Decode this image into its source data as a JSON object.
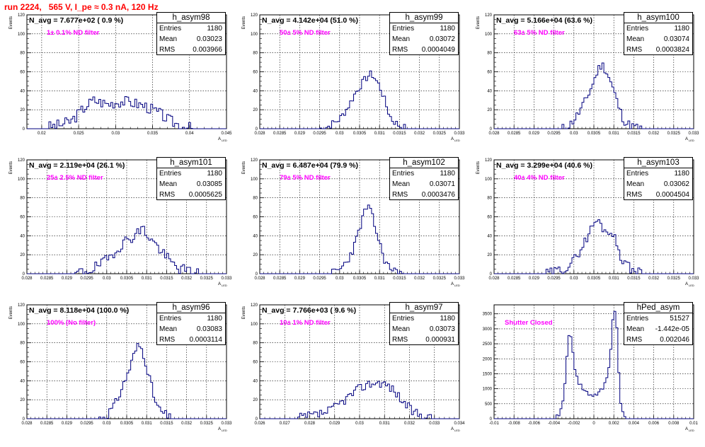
{
  "title": "run 2224,   565 V, I_pe ≈ 0.3 nA, 120 Hz",
  "chart_data": [
    {
      "type": "histogram",
      "hist_name": "h_asym98",
      "n_avg_label": "N_avg = 7.677e+02 ( 0.9 %)",
      "filter_label": "1± 0.1% ND filter",
      "entries": "1180",
      "mean": "0.03023",
      "rms": "0.003966",
      "xlabel": "A",
      "xlabel_sub": "LED",
      "ylabel": "Events",
      "xlim": [
        0.018,
        0.045
      ],
      "ylim": [
        0,
        120
      ],
      "xticks": [
        0.02,
        0.025,
        0.03,
        0.035,
        0.04,
        0.045
      ],
      "xtick_labels": [
        "0.02",
        "0.025",
        "0.03",
        "0.035",
        "0.04",
        "0.045"
      ],
      "yticks": [
        0,
        20,
        40,
        60,
        80,
        100,
        120
      ],
      "profile": [
        [
          0.0208,
          0
        ],
        [
          0.021,
          2
        ],
        [
          0.0225,
          4
        ],
        [
          0.024,
          8
        ],
        [
          0.025,
          16
        ],
        [
          0.026,
          24
        ],
        [
          0.027,
          30
        ],
        [
          0.028,
          28
        ],
        [
          0.029,
          26
        ],
        [
          0.03,
          28
        ],
        [
          0.031,
          29
        ],
        [
          0.032,
          28
        ],
        [
          0.033,
          26
        ],
        [
          0.034,
          24
        ],
        [
          0.035,
          20
        ],
        [
          0.036,
          16
        ],
        [
          0.037,
          10
        ],
        [
          0.038,
          6
        ],
        [
          0.039,
          3
        ],
        [
          0.0405,
          0
        ]
      ],
      "noise": 6,
      "seed": 3
    },
    {
      "type": "histogram",
      "hist_name": "h_asym99",
      "n_avg_label": "N_avg = 4.142e+04 (51.0 %)",
      "filter_label": "50± 5% ND filter",
      "entries": "1180",
      "mean": "0.03072",
      "rms": "0.0004049",
      "xlabel": "A",
      "xlabel_sub": "LED",
      "ylabel": "Events",
      "xlim": [
        0.028,
        0.033
      ],
      "ylim": [
        0,
        120
      ],
      "xticks": [
        0.028,
        0.0285,
        0.029,
        0.0295,
        0.03,
        0.0305,
        0.031,
        0.0315,
        0.032,
        0.0325,
        0.033
      ],
      "xtick_labels": [
        "0.028",
        "0.0285",
        "0.029",
        "0.0295",
        "0.03",
        "0.0305",
        "0.031",
        "0.0315",
        "0.032",
        "0.0325",
        "0.033"
      ],
      "yticks": [
        0,
        20,
        40,
        60,
        80,
        100,
        120
      ],
      "profile": [
        [
          0.0295,
          0
        ],
        [
          0.0297,
          2
        ],
        [
          0.03,
          10
        ],
        [
          0.0302,
          22
        ],
        [
          0.0304,
          38
        ],
        [
          0.0306,
          50
        ],
        [
          0.0307,
          55
        ],
        [
          0.0308,
          58
        ],
        [
          0.0309,
          52
        ],
        [
          0.031,
          45
        ],
        [
          0.0311,
          34
        ],
        [
          0.0312,
          20
        ],
        [
          0.0313,
          10
        ],
        [
          0.0315,
          3
        ],
        [
          0.0317,
          0
        ]
      ],
      "noise": 4,
      "seed": 7
    },
    {
      "type": "histogram",
      "hist_name": "h_asym100",
      "n_avg_label": "N_avg = 5.166e+04 (63.6 %)",
      "filter_label": "63± 5% ND filter",
      "entries": "1180",
      "mean": "0.03074",
      "rms": "0.0003824",
      "xlabel": "A",
      "xlabel_sub": "LED",
      "ylabel": "Events",
      "xlim": [
        0.028,
        0.033
      ],
      "ylim": [
        0,
        120
      ],
      "xticks": [
        0.028,
        0.0285,
        0.029,
        0.0295,
        0.03,
        0.0305,
        0.031,
        0.0315,
        0.032,
        0.0325,
        0.033
      ],
      "xtick_labels": [
        "0.028",
        "0.0285",
        "0.029",
        "0.0295",
        "0.03",
        "0.0305",
        "0.031",
        "0.0315",
        "0.032",
        "0.0325",
        "0.033"
      ],
      "yticks": [
        0,
        20,
        40,
        60,
        80,
        100,
        120
      ],
      "profile": [
        [
          0.0297,
          0
        ],
        [
          0.0299,
          4
        ],
        [
          0.0301,
          15
        ],
        [
          0.0303,
          30
        ],
        [
          0.0305,
          50
        ],
        [
          0.0306,
          62
        ],
        [
          0.0307,
          68
        ],
        [
          0.0308,
          62
        ],
        [
          0.0309,
          52
        ],
        [
          0.031,
          40
        ],
        [
          0.0311,
          26
        ],
        [
          0.0312,
          14
        ],
        [
          0.0313,
          6
        ],
        [
          0.0315,
          2
        ],
        [
          0.0317,
          0
        ]
      ],
      "noise": 5,
      "seed": 11
    },
    {
      "type": "histogram",
      "hist_name": "h_asym101",
      "n_avg_label": "N_avg = 2.119e+04 (26.1 %)",
      "filter_label": "25± 2.5% ND filter",
      "entries": "1180",
      "mean": "0.03085",
      "rms": "0.0005625",
      "xlabel": "A",
      "xlabel_sub": "LED",
      "ylabel": "Events",
      "xlim": [
        0.028,
        0.033
      ],
      "ylim": [
        0,
        120
      ],
      "xticks": [
        0.028,
        0.0285,
        0.029,
        0.0295,
        0.03,
        0.0305,
        0.031,
        0.0315,
        0.032,
        0.0325,
        0.033
      ],
      "xtick_labels": [
        "0.028",
        "0.0285",
        "0.029",
        "0.0295",
        "0.03",
        "0.0305",
        "0.031",
        "0.0315",
        "0.032",
        "0.0325",
        "0.033"
      ],
      "yticks": [
        0,
        20,
        40,
        60,
        80,
        100,
        120
      ],
      "profile": [
        [
          0.0292,
          0
        ],
        [
          0.0294,
          2
        ],
        [
          0.0297,
          6
        ],
        [
          0.03,
          14
        ],
        [
          0.0302,
          24
        ],
        [
          0.0304,
          32
        ],
        [
          0.0306,
          38
        ],
        [
          0.0308,
          44
        ],
        [
          0.0309,
          48
        ],
        [
          0.031,
          42
        ],
        [
          0.0312,
          32
        ],
        [
          0.0314,
          22
        ],
        [
          0.0316,
          12
        ],
        [
          0.0318,
          6
        ],
        [
          0.032,
          3
        ],
        [
          0.0323,
          0
        ]
      ],
      "noise": 6,
      "seed": 19
    },
    {
      "type": "histogram",
      "hist_name": "h_asym102",
      "n_avg_label": "N_avg = 6.487e+04 (79.9 %)",
      "filter_label": "79± 5% ND filter",
      "entries": "1180",
      "mean": "0.03071",
      "rms": "0.0003476",
      "xlabel": "A",
      "xlabel_sub": "LED",
      "ylabel": "Events",
      "xlim": [
        0.028,
        0.033
      ],
      "ylim": [
        0,
        120
      ],
      "xticks": [
        0.028,
        0.0285,
        0.029,
        0.0295,
        0.03,
        0.0305,
        0.031,
        0.0315,
        0.032,
        0.0325,
        0.033
      ],
      "xtick_labels": [
        "0.028",
        "0.0285",
        "0.029",
        "0.0295",
        "0.03",
        "0.0305",
        "0.031",
        "0.0315",
        "0.032",
        "0.0325",
        "0.033"
      ],
      "yticks": [
        0,
        20,
        40,
        60,
        80,
        100,
        120
      ],
      "profile": [
        [
          0.0298,
          0
        ],
        [
          0.03,
          4
        ],
        [
          0.0302,
          14
        ],
        [
          0.0304,
          32
        ],
        [
          0.0305,
          48
        ],
        [
          0.0306,
          62
        ],
        [
          0.0307,
          72
        ],
        [
          0.0308,
          62
        ],
        [
          0.0309,
          48
        ],
        [
          0.031,
          32
        ],
        [
          0.0311,
          18
        ],
        [
          0.0312,
          8
        ],
        [
          0.0314,
          3
        ],
        [
          0.0316,
          0
        ]
      ],
      "noise": 5,
      "seed": 23
    },
    {
      "type": "histogram",
      "hist_name": "h_asym103",
      "n_avg_label": "N_avg = 3.299e+04 (40.6 %)",
      "filter_label": "40± 4% ND filter",
      "entries": "1180",
      "mean": "0.03062",
      "rms": "0.0004504",
      "xlabel": "A",
      "xlabel_sub": "LED",
      "ylabel": "Events",
      "xlim": [
        0.028,
        0.033
      ],
      "ylim": [
        0,
        120
      ],
      "xticks": [
        0.028,
        0.0285,
        0.029,
        0.0295,
        0.03,
        0.0305,
        0.031,
        0.0315,
        0.032,
        0.0325,
        0.033
      ],
      "xtick_labels": [
        "0.028",
        "0.0285",
        "0.029",
        "0.0295",
        "0.03",
        "0.0305",
        "0.031",
        "0.0315",
        "0.032",
        "0.0325",
        "0.033"
      ],
      "yticks": [
        0,
        20,
        40,
        60,
        80,
        100,
        120
      ],
      "profile": [
        [
          0.0293,
          0
        ],
        [
          0.0295,
          2
        ],
        [
          0.0298,
          6
        ],
        [
          0.03,
          14
        ],
        [
          0.0302,
          28
        ],
        [
          0.0304,
          44
        ],
        [
          0.0305,
          54
        ],
        [
          0.0306,
          56
        ],
        [
          0.0307,
          50
        ],
        [
          0.0308,
          44
        ],
        [
          0.0309,
          46
        ],
        [
          0.031,
          40
        ],
        [
          0.0311,
          28
        ],
        [
          0.0312,
          16
        ],
        [
          0.0314,
          6
        ],
        [
          0.0316,
          2
        ],
        [
          0.0318,
          0
        ]
      ],
      "noise": 5,
      "seed": 29
    },
    {
      "type": "histogram",
      "hist_name": "h_asym96",
      "n_avg_label": "N_avg = 8.118e+04 (100.0 %)",
      "filter_label": "100% (No filter)",
      "entries": "1180",
      "mean": "0.03083",
      "rms": "0.0003114",
      "xlabel": "A",
      "xlabel_sub": "LED",
      "ylabel": "Events",
      "xlim": [
        0.028,
        0.033
      ],
      "ylim": [
        0,
        120
      ],
      "xticks": [
        0.028,
        0.0285,
        0.029,
        0.0295,
        0.03,
        0.0305,
        0.031,
        0.0315,
        0.032,
        0.0325,
        0.033
      ],
      "xtick_labels": [
        "0.028",
        "0.0285",
        "0.029",
        "0.0295",
        "0.03",
        "0.0305",
        "0.031",
        "0.0315",
        "0.032",
        "0.0325",
        "0.033"
      ],
      "yticks": [
        0,
        20,
        40,
        60,
        80,
        100,
        120
      ],
      "profile": [
        [
          0.0298,
          0
        ],
        [
          0.03,
          4
        ],
        [
          0.0302,
          14
        ],
        [
          0.0304,
          34
        ],
        [
          0.0306,
          56
        ],
        [
          0.0307,
          70
        ],
        [
          0.0308,
          78
        ],
        [
          0.0309,
          72
        ],
        [
          0.031,
          56
        ],
        [
          0.0311,
          38
        ],
        [
          0.0312,
          20
        ],
        [
          0.0313,
          10
        ],
        [
          0.0315,
          3
        ],
        [
          0.0316,
          0
        ]
      ],
      "noise": 5,
      "seed": 31
    },
    {
      "type": "histogram",
      "hist_name": "h_asym97",
      "n_avg_label": "N_avg = 7.766e+03 ( 9.6 %)",
      "filter_label": "10± 1% ND filter",
      "entries": "1180",
      "mean": "0.03073",
      "rms": "0.000931",
      "xlabel": "A",
      "xlabel_sub": "LED",
      "ylabel": "Events",
      "xlim": [
        0.026,
        0.034
      ],
      "ylim": [
        0,
        120
      ],
      "xticks": [
        0.026,
        0.027,
        0.028,
        0.029,
        0.03,
        0.031,
        0.032,
        0.033,
        0.034
      ],
      "xtick_labels": [
        "0.026",
        "0.027",
        "0.028",
        "0.029",
        "0.03",
        "0.031",
        "0.032",
        "0.033",
        "0.034"
      ],
      "yticks": [
        0,
        20,
        40,
        60,
        80,
        100,
        120
      ],
      "profile": [
        [
          0.0275,
          0
        ],
        [
          0.0278,
          2
        ],
        [
          0.0283,
          4
        ],
        [
          0.0288,
          8
        ],
        [
          0.0292,
          16
        ],
        [
          0.0296,
          24
        ],
        [
          0.03,
          32
        ],
        [
          0.0303,
          36
        ],
        [
          0.0306,
          38
        ],
        [
          0.0309,
          38
        ],
        [
          0.0312,
          34
        ],
        [
          0.0315,
          26
        ],
        [
          0.0318,
          16
        ],
        [
          0.0321,
          8
        ],
        [
          0.0325,
          3
        ],
        [
          0.033,
          0
        ]
      ],
      "noise": 5,
      "seed": 37
    },
    {
      "type": "histogram",
      "hist_name": "hPed_asym",
      "n_avg_label": "",
      "filter_label": "Shutter Closed",
      "entries": "51527",
      "mean": "-1.442e-05",
      "rms": "0.002046",
      "xlabel": "A",
      "xlabel_sub": "LED",
      "ylabel": "",
      "xlim": [
        -0.01,
        0.01
      ],
      "ylim": [
        0,
        3800
      ],
      "xticks": [
        -0.01,
        -0.008,
        -0.006,
        -0.004,
        -0.002,
        0,
        0.002,
        0.004,
        0.006,
        0.008,
        0.01
      ],
      "xtick_labels": [
        "-0.01",
        "-0.008",
        "-0.006",
        "-0.004",
        "-0.002",
        "0",
        "0.002",
        "0.004",
        "0.006",
        "0.008",
        "0.01"
      ],
      "yticks": [
        0,
        500,
        1000,
        1500,
        2000,
        2500,
        3000,
        3500
      ],
      "profile": [
        [
          -0.0038,
          0
        ],
        [
          -0.0034,
          200
        ],
        [
          -0.003,
          700
        ],
        [
          -0.0028,
          1600
        ],
        [
          -0.0026,
          2700
        ],
        [
          -0.0024,
          2950
        ],
        [
          -0.0022,
          2400
        ],
        [
          -0.0019,
          1700
        ],
        [
          -0.0015,
          1200
        ],
        [
          -0.001,
          950
        ],
        [
          -0.0005,
          820
        ],
        [
          0.0,
          780
        ],
        [
          0.0005,
          850
        ],
        [
          0.001,
          1050
        ],
        [
          0.0014,
          1500
        ],
        [
          0.0017,
          2300
        ],
        [
          0.0019,
          3300
        ],
        [
          0.0021,
          3650
        ],
        [
          0.0023,
          3000
        ],
        [
          0.0025,
          1500
        ],
        [
          0.0027,
          500
        ],
        [
          0.003,
          100
        ],
        [
          0.0034,
          0
        ]
      ],
      "noise": 80,
      "seed": 41
    }
  ]
}
